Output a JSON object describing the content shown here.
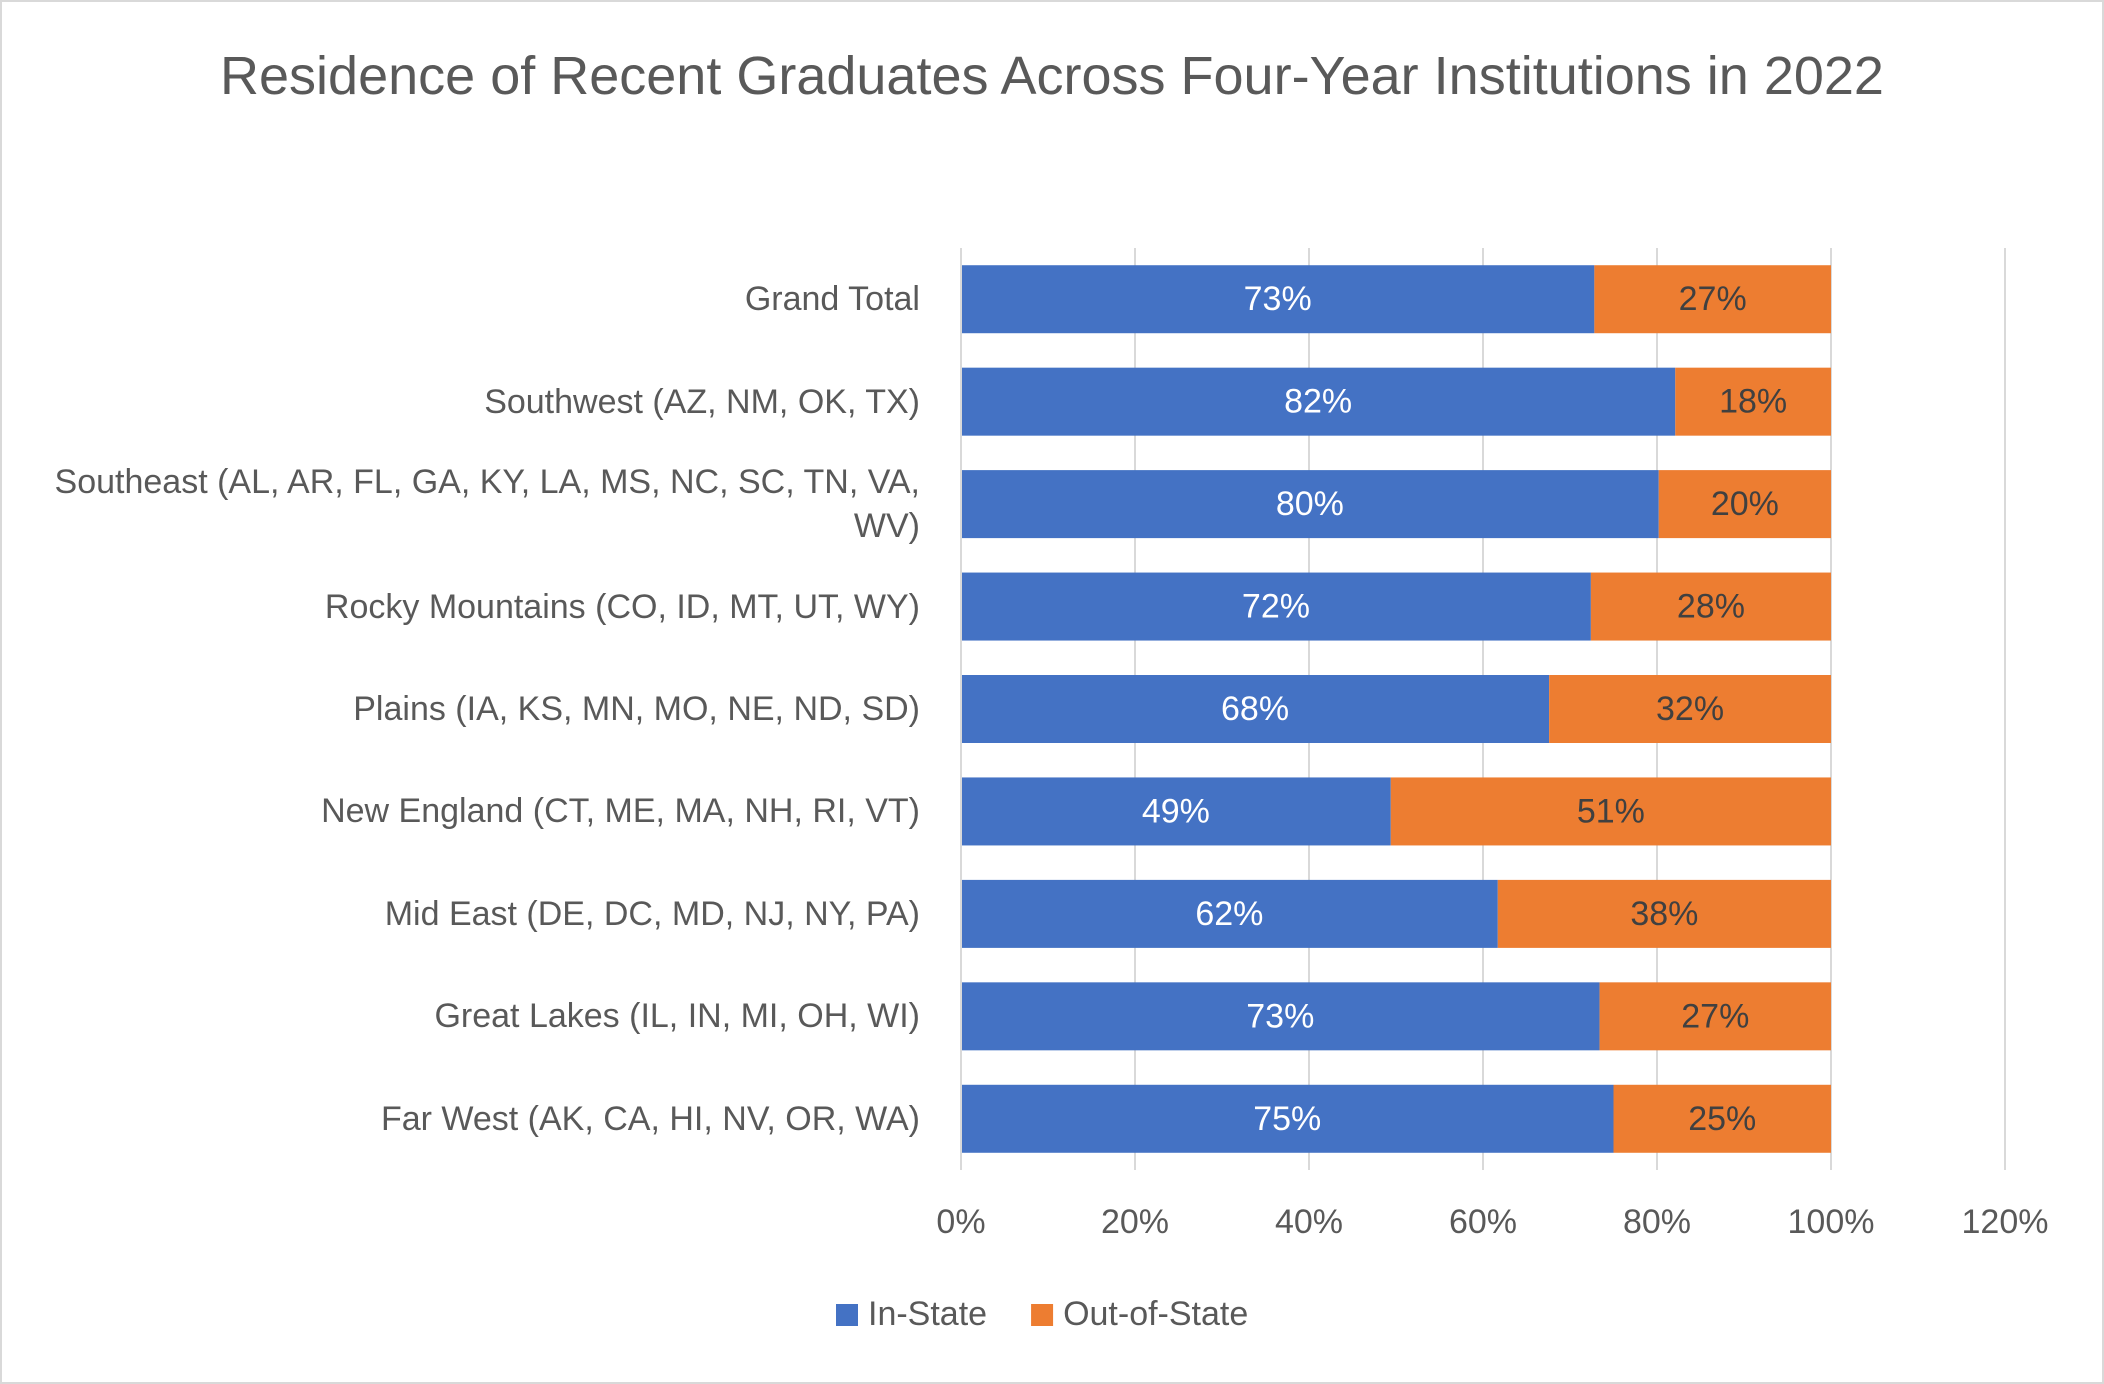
{
  "chart_data": {
    "type": "stacked-bar-horizontal",
    "title": "Residence of Recent Graduates Across Four-Year Institutions in 2022",
    "categories": [
      "Grand Total",
      "Southwest (AZ, NM, OK, TX)",
      "Southeast (AL, AR, FL, GA, KY, LA, MS, NC, SC, TN, VA, WV)",
      "Rocky Mountains (CO, ID, MT, UT, WY)",
      "Plains (IA, KS, MN, MO, NE, ND, SD)",
      "New England (CT, ME, MA, NH, RI, VT)",
      "Mid East (DE, DC, MD, NJ, NY, PA)",
      "Great Lakes (IL, IN, MI, OH, WI)",
      "Far West (AK, CA, HI, NV, OR, WA)"
    ],
    "series": [
      {
        "name": "In-State",
        "color": "#4472c4",
        "label_color": "#ffffff",
        "values": [
          72.8,
          82.1,
          80.2,
          72.4,
          67.6,
          49.4,
          61.7,
          73.4,
          75.0
        ],
        "value_labels": [
          "73%",
          "82%",
          "80%",
          "72%",
          "68%",
          "49%",
          "62%",
          "73%",
          "75%"
        ]
      },
      {
        "name": "Out-of-State",
        "color": "#ed7d31",
        "label_color": "#404040",
        "values": [
          27.2,
          17.9,
          19.8,
          27.6,
          32.4,
          50.6,
          38.3,
          26.6,
          25.0
        ],
        "value_labels": [
          "27%",
          "18%",
          "20%",
          "28%",
          "32%",
          "51%",
          "38%",
          "27%",
          "25%"
        ]
      }
    ],
    "xlim": [
      0,
      120
    ],
    "xticks": [
      {
        "value": 0,
        "label": "0%"
      },
      {
        "value": 20,
        "label": "20%"
      },
      {
        "value": 40,
        "label": "40%"
      },
      {
        "value": 60,
        "label": "60%"
      },
      {
        "value": 80,
        "label": "80%"
      },
      {
        "value": 100,
        "label": "100%"
      },
      {
        "value": 120,
        "label": "120%"
      }
    ],
    "grid": true,
    "legend": "bottom"
  }
}
